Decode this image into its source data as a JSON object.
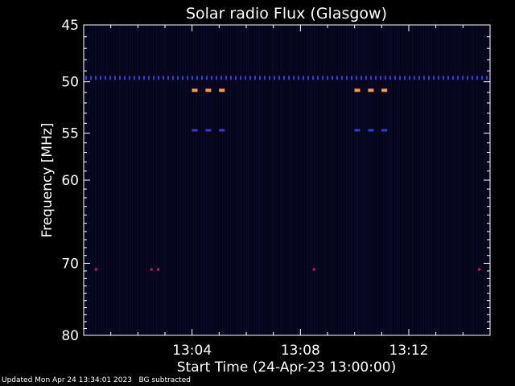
{
  "chart_data": {
    "type": "heatmap",
    "title": "Solar radio Flux (Glasgow)",
    "xlabel": "Start Time (24-Apr-23 13:00:00)",
    "ylabel": "Frequency [MHz]",
    "x_unit": "minutes after 13:00",
    "xlim": [
      0,
      15
    ],
    "ylim": [
      45,
      80
    ],
    "y_scale": "log",
    "y_ticks": [
      45,
      50,
      55,
      60,
      70,
      80
    ],
    "y_tick_labels": [
      "45",
      "50",
      "55",
      "60",
      "70",
      "80"
    ],
    "x_ticks": [
      4,
      8,
      12
    ],
    "x_tick_labels": [
      "13:04",
      "13:08",
      "13:12"
    ],
    "colors": {
      "background": "#05051a",
      "strong": "#ff9a40",
      "medium": "#3040d0",
      "hot": "#e01050",
      "axis": "#ffffff"
    },
    "features": [
      {
        "kind": "band",
        "freq": 49.6,
        "x_start": 0,
        "x_end": 15,
        "level": "medium"
      },
      {
        "kind": "spot",
        "freq": 50.8,
        "x": 4.1,
        "level": "strong"
      },
      {
        "kind": "spot",
        "freq": 50.8,
        "x": 4.6,
        "level": "strong"
      },
      {
        "kind": "spot",
        "freq": 50.8,
        "x": 5.1,
        "level": "strong"
      },
      {
        "kind": "spot",
        "freq": 50.8,
        "x": 10.1,
        "level": "strong"
      },
      {
        "kind": "spot",
        "freq": 50.8,
        "x": 10.6,
        "level": "strong"
      },
      {
        "kind": "spot",
        "freq": 50.8,
        "x": 11.1,
        "level": "strong"
      },
      {
        "kind": "spot",
        "freq": 54.7,
        "x": 4.1,
        "level": "medium"
      },
      {
        "kind": "spot",
        "freq": 54.7,
        "x": 4.6,
        "level": "medium"
      },
      {
        "kind": "spot",
        "freq": 54.7,
        "x": 5.1,
        "level": "medium"
      },
      {
        "kind": "spot",
        "freq": 54.7,
        "x": 10.1,
        "level": "medium"
      },
      {
        "kind": "spot",
        "freq": 54.7,
        "x": 10.6,
        "level": "medium"
      },
      {
        "kind": "spot",
        "freq": 54.7,
        "x": 11.1,
        "level": "medium"
      },
      {
        "kind": "spot",
        "freq": 70.8,
        "x": 0.45,
        "level": "hot"
      },
      {
        "kind": "spot",
        "freq": 70.8,
        "x": 2.5,
        "level": "hot"
      },
      {
        "kind": "spot",
        "freq": 70.8,
        "x": 2.75,
        "level": "hot"
      },
      {
        "kind": "spot",
        "freq": 70.8,
        "x": 8.5,
        "level": "hot"
      },
      {
        "kind": "spot",
        "freq": 70.8,
        "x": 14.6,
        "level": "hot"
      }
    ]
  },
  "footer": {
    "updated": "Updated Mon Apr 24 13:34:01 2023",
    "note": "BG subtracted"
  }
}
